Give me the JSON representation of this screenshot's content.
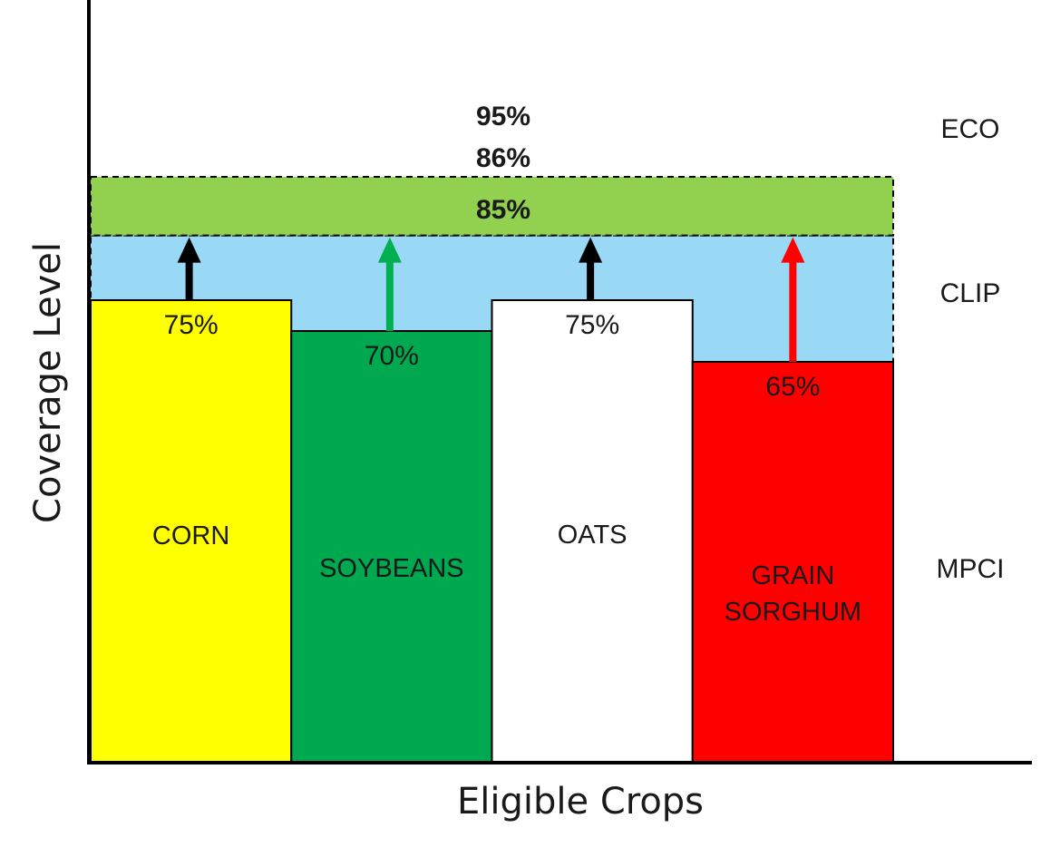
{
  "chart_data": {
    "type": "bar",
    "xlabel": "Eligible Crops",
    "ylabel": "Coverage Level",
    "ylim": [
      0,
      100
    ],
    "grid": false,
    "categories": [
      "CORN",
      "SOYBEANS",
      "OATS",
      "GRAIN SORGHUM"
    ],
    "category_lines": [
      [
        "CORN"
      ],
      [
        "SOYBEANS"
      ],
      [
        "OATS"
      ],
      [
        "GRAIN",
        "SORGHUM"
      ]
    ],
    "values": [
      75,
      70,
      75,
      65
    ],
    "value_labels": [
      "75%",
      "70%",
      "75%",
      "65%"
    ],
    "bar_colors": [
      "#ffff00",
      "#00a94f",
      "#ffffff",
      "#ff0000"
    ],
    "arrow_colors": [
      "#000000",
      "#00b050",
      "#000000",
      "#ff0000"
    ],
    "arrow_target": 85.5,
    "bands": [
      {
        "name": "CLIP",
        "from": 65,
        "to": 85.5,
        "color": "#99d9f5",
        "labels": [
          "85%"
        ]
      },
      {
        "name": "ECO",
        "from": 85.5,
        "to": 95,
        "color": "#92d050",
        "labels": [
          "95%",
          "86%"
        ]
      }
    ],
    "tiers": [
      "ECO",
      "CLIP",
      "MPCI"
    ]
  }
}
